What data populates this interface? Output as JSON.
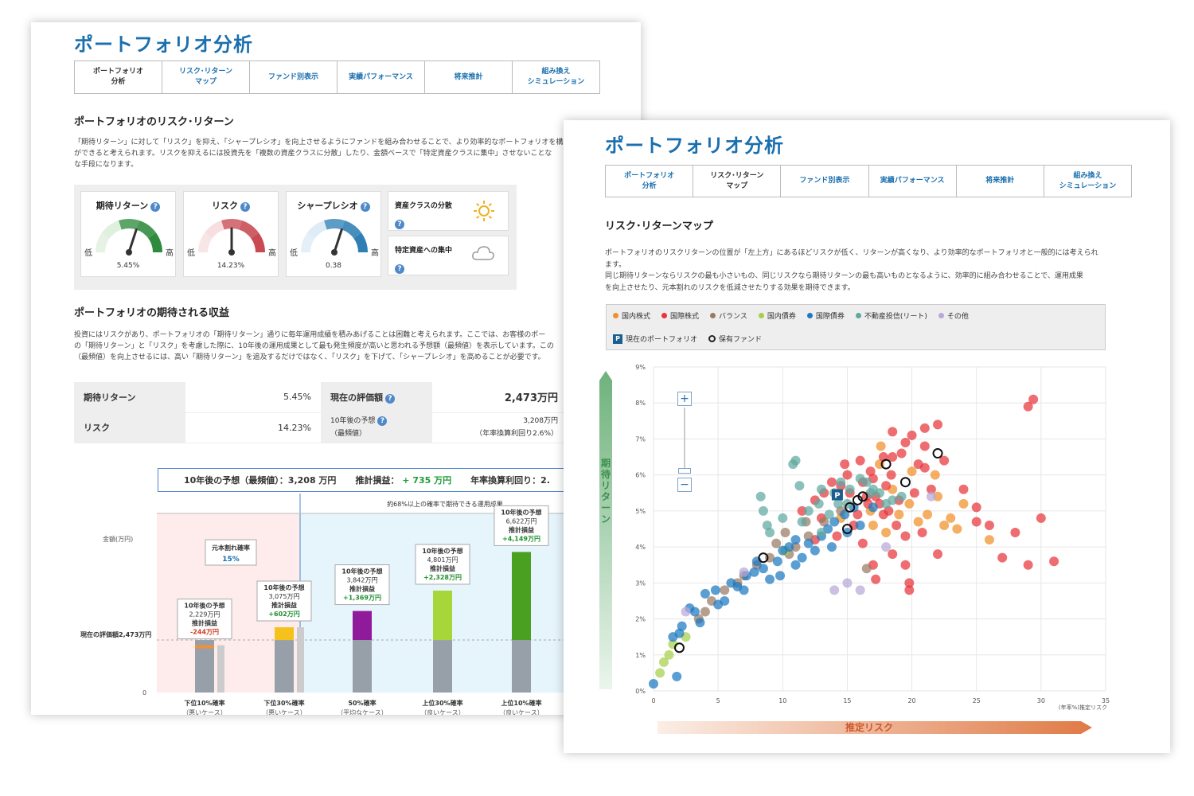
{
  "back": {
    "title": "ポートフォリオ分析",
    "tabs": [
      {
        "label": "ポートフォリオ\n分析",
        "active": true
      },
      {
        "label": "リスク･リターン\nマップ",
        "active": false
      },
      {
        "label": "ファンド別表示",
        "active": false
      },
      {
        "label": "実績パフォーマンス",
        "active": false
      },
      {
        "label": "将来推計",
        "active": false
      },
      {
        "label": "組み換え\nシミュレーション",
        "active": false
      }
    ],
    "section1_title": "ポートフォリオのリスク･リターン",
    "section1_text": "「期待リターン」に対して「リスク」を抑え、「シャープレシオ」を向上させるようにファンドを組み合わせることで、より効率的なポートフォリオを構築\nができると考えられます。リスクを抑えるには投資先を「複数の資産クラスに分散」したり、金額ベースで「特定資産クラスに集中」させないことな\nな手段になります。",
    "gauges": [
      {
        "title": "期待リターン",
        "value": "5.45%",
        "level": 0.6,
        "color": "#2e8b3e",
        "light": "#cfe8cf"
      },
      {
        "title": "リスク",
        "value": "14.23%",
        "level": 0.5,
        "color": "#c94a52",
        "light": "#f3cfd1"
      },
      {
        "title": "シャープレシオ",
        "value": "0.38",
        "level": 0.6,
        "color": "#2f7fb5",
        "light": "#cde2f1"
      }
    ],
    "gauge_low": "低",
    "gauge_high": "高",
    "diversification_label": "資産クラスの分散",
    "concentration_label": "特定資産への集中",
    "section2_title": "ポートフォリオの期待される収益",
    "section2_text": "投資にはリスクがあり、ポートフォリオの「期待リターン」通りに毎年運用成績を積みあげることは困難と考えられます。ここでは、お客様のポー\nの「期待リターン」と「リスク」を考慮した際に、10年後の運用成果として最も発生頻度が高いと思われる予想額（最頻値）を表示しています。この\n（最頻値）を向上させるには、高い「期待リターン」を追及するだけではなく、「リスク」を下げて、「シャープレシオ」を高めることが必要です。",
    "summary": {
      "expected_return_label": "期待リターン",
      "expected_return_value": "5.45%",
      "risk_label": "リスク",
      "risk_value": "14.23%",
      "current_value_label": "現在の評価額",
      "current_value": "2,473万円",
      "forecast_label": "10年後の予想",
      "forecast_sub": "（最頻値）",
      "forecast_value": "3,208万円",
      "forecast_note": "（年率換算利回り2.6%）"
    },
    "forecast_box": {
      "mode_label": "10年後の予想（最頻値）：3,208 万円",
      "profit_label": "推計損益：",
      "profit_value": "+ 735 万円",
      "annual_label": "年率換算利回り：2."
    },
    "sim_chart": {
      "ylabel": "金額(万円)",
      "zero": "0",
      "current_line_label": "現在の評価額2,473万円",
      "band_caption": "約68%以上の確率で期待できる運用成果",
      "loss_box_title": "元本割れ確率",
      "loss_box_value": "15%",
      "bars": [
        {
          "x_label": "下位10%確率",
          "x_sub": "（悪いケース）",
          "head": "10年後の予想",
          "amount": "2,229万円",
          "pl_label": "推計損益",
          "pl": "-244万円",
          "neg": true,
          "top_color": "#f0903a",
          "value": 2229
        },
        {
          "x_label": "下位30%確率",
          "x_sub": "（悪いケース）",
          "head": "10年後の予想",
          "amount": "3,075万円",
          "pl_label": "推計損益",
          "pl": "+602万円",
          "neg": false,
          "top_color": "#f5c21b",
          "value": 3075
        },
        {
          "x_label": "50%確率",
          "x_sub": "（平均なケース）",
          "head": "10年後の予想",
          "amount": "3,842万円",
          "pl_label": "推計損益",
          "pl": "+1,369万円",
          "neg": false,
          "top_color": "#8f1a9a",
          "value": 3842
        },
        {
          "x_label": "上位30%確率",
          "x_sub": "（良いケース）",
          "head": "10年後の予想",
          "amount": "4,801万円",
          "pl_label": "推計損益",
          "pl": "+2,328万円",
          "neg": false,
          "top_color": "#a6d63a",
          "value": 4801
        },
        {
          "x_label": "上位10%確率",
          "x_sub": "（良いケース）",
          "head": "10年後の予想",
          "amount": "6,622万円",
          "pl_label": "推計損益",
          "pl": "+4,149万円",
          "neg": false,
          "top_color": "#4aa020",
          "value": 6622
        }
      ]
    }
  },
  "front": {
    "title": "ポートフォリオ分析",
    "tabs": [
      {
        "label": "ポートフォリオ\n分析",
        "active": false
      },
      {
        "label": "リスク･リターン\nマップ",
        "active": true
      },
      {
        "label": "ファンド別表示",
        "active": false
      },
      {
        "label": "実績パフォーマンス",
        "active": false
      },
      {
        "label": "将来推計",
        "active": false
      },
      {
        "label": "組み換え\nシミュレーション",
        "active": false
      }
    ],
    "section_title": "リスク･リターンマップ",
    "section_text": "ポートフォリオのリスクリターンの位置が「左上方」にあるほどリスクが低く、リターンが高くなり、より効率的なポートフォリオと一般的には考えられ\nます。\n同じ期待リターンならリスクの最も小さいもの、同じリスクなら期待リターンの最も高いものとなるように、効率的に組み合わせることで、運用成果\nを向上させたり、元本割れのリスクを低減させたりする効果を期待できます。",
    "legend": [
      {
        "label": "国内株式",
        "color": "#f0902a"
      },
      {
        "label": "国際株式",
        "color": "#e8343a"
      },
      {
        "label": "バランス",
        "color": "#9a7a62"
      },
      {
        "label": "国内債券",
        "color": "#a6d04a"
      },
      {
        "label": "国際債券",
        "color": "#1c78c0"
      },
      {
        "label": "不動産投信(リート)",
        "color": "#5fa8a0"
      },
      {
        "label": "その他",
        "color": "#b8a8d8"
      }
    ],
    "legend_portfolio": "現在のポートフォリオ",
    "legend_portfolio_badge": "P",
    "legend_held": "保有ファンド",
    "zoom_in": "+",
    "zoom_out": "−",
    "yaxis_title": "期待リターン",
    "xaxis_title": "推定リスク"
  },
  "chart_data": {
    "type": "scatter",
    "title": "",
    "xlabel": "(年率%)推定リスク",
    "ylabel": "期待リターン",
    "xlim": [
      0,
      35
    ],
    "ylim": [
      0,
      9
    ],
    "x_ticks": [
      "0",
      "5",
      "10",
      "15",
      "20",
      "25",
      "30",
      "35"
    ],
    "y_ticks": [
      "0%",
      "1%",
      "2%",
      "3%",
      "4%",
      "5%",
      "6%",
      "7%",
      "8%",
      "9%"
    ],
    "portfolio": {
      "x": 14.23,
      "y": 5.45,
      "label": "P"
    },
    "held_funds": [
      [
        2,
        1.2
      ],
      [
        8.5,
        3.7
      ],
      [
        15,
        4.5
      ],
      [
        15.8,
        5.3
      ],
      [
        16.2,
        5.4
      ],
      [
        15.2,
        5.1
      ],
      [
        18,
        6.3
      ],
      [
        19.5,
        5.8
      ],
      [
        22,
        6.6
      ]
    ],
    "series": [
      {
        "name": "国内株式",
        "color": "#f0902a",
        "points": [
          [
            17.5,
            6.3
          ],
          [
            18.5,
            5.6
          ],
          [
            19.8,
            5.2
          ],
          [
            20.5,
            4.7
          ],
          [
            21.2,
            4.9
          ],
          [
            22.5,
            4.6
          ],
          [
            23.5,
            4.5
          ],
          [
            24,
            5.2
          ],
          [
            26,
            4.2
          ],
          [
            17,
            4.6
          ],
          [
            18,
            4.4
          ],
          [
            22,
            5.4
          ],
          [
            20,
            6.1
          ],
          [
            21.8,
            6.0
          ],
          [
            16.8,
            5.0
          ],
          [
            19,
            4.9
          ],
          [
            23,
            4.8
          ],
          [
            14.5,
            4.8
          ],
          [
            17.6,
            6.8
          ]
        ]
      },
      {
        "name": "国際株式",
        "color": "#e8343a",
        "points": [
          [
            29,
            7.9
          ],
          [
            29.4,
            8.1
          ],
          [
            22,
            7.4
          ],
          [
            20,
            7.1
          ],
          [
            21,
            7.3
          ],
          [
            19.5,
            6.9
          ],
          [
            22.5,
            6.4
          ],
          [
            21,
            6.2
          ],
          [
            24,
            5.6
          ],
          [
            25,
            5.1
          ],
          [
            26,
            4.6
          ],
          [
            28,
            4.4
          ],
          [
            30,
            4.8
          ],
          [
            31,
            3.6
          ],
          [
            29,
            3.5
          ],
          [
            27,
            3.7
          ],
          [
            25,
            4.7
          ],
          [
            22,
            3.8
          ],
          [
            19.5,
            3.5
          ],
          [
            18.5,
            3.8
          ],
          [
            19.8,
            3.0
          ],
          [
            19.8,
            2.8
          ],
          [
            17,
            3.5
          ],
          [
            17.2,
            3.1
          ],
          [
            16.5,
            5.4
          ],
          [
            17.5,
            5.2
          ],
          [
            18.2,
            5.0
          ],
          [
            18.8,
            4.6
          ],
          [
            16.2,
            5.8
          ],
          [
            15,
            6.0
          ],
          [
            14.5,
            5.7
          ],
          [
            13.8,
            5.8
          ],
          [
            16,
            6.4
          ],
          [
            17,
            5.9
          ],
          [
            18.5,
            6.5
          ],
          [
            19.2,
            6.6
          ],
          [
            20.5,
            6.3
          ],
          [
            21.5,
            5.6
          ],
          [
            15.5,
            4.6
          ],
          [
            16.2,
            4.1
          ],
          [
            14.2,
            4.3
          ],
          [
            13,
            4.8
          ],
          [
            12.5,
            5.3
          ],
          [
            11.5,
            5.0
          ],
          [
            21,
            6.8
          ],
          [
            18.5,
            7.2
          ],
          [
            17.2,
            5.4
          ],
          [
            15.8,
            4.9
          ],
          [
            17.8,
            4.9
          ],
          [
            19,
            5.3
          ],
          [
            20.2,
            5.5
          ],
          [
            18,
            5.7
          ],
          [
            16.8,
            6.1
          ],
          [
            14.8,
            6.3
          ],
          [
            13.2,
            5.5
          ],
          [
            12.5,
            4.2
          ],
          [
            19.5,
            4.3
          ],
          [
            20.8,
            4.4
          ],
          [
            15.2,
            5.5
          ],
          [
            16.6,
            5.2
          ],
          [
            18.4,
            6.0
          ],
          [
            17.8,
            6.5
          ]
        ]
      },
      {
        "name": "バランス",
        "color": "#9a7a62",
        "points": [
          [
            3.5,
            2.0
          ],
          [
            4.5,
            2.5
          ],
          [
            5.5,
            2.8
          ],
          [
            7,
            3.2
          ],
          [
            8,
            3.5
          ],
          [
            9.5,
            4.1
          ],
          [
            10.2,
            4.4
          ],
          [
            11,
            4.0
          ],
          [
            12,
            4.3
          ],
          [
            11.8,
            4.7
          ],
          [
            14.5,
            5.0
          ],
          [
            13.2,
            4.7
          ],
          [
            10.5,
            3.8
          ],
          [
            16.5,
            3.4
          ],
          [
            9,
            3.7
          ],
          [
            6.5,
            3.0
          ],
          [
            4,
            2.2
          ]
        ]
      },
      {
        "name": "国内債券",
        "color": "#a6d04a",
        "points": [
          [
            0.5,
            0.5
          ],
          [
            0.8,
            0.8
          ],
          [
            1.2,
            1.0
          ],
          [
            1.5,
            1.3
          ],
          [
            2.5,
            1.5
          ],
          [
            10.2,
            3.9
          ]
        ]
      },
      {
        "name": "国際債券",
        "color": "#1c78c0",
        "points": [
          [
            0,
            0.2
          ],
          [
            1.5,
            1.5
          ],
          [
            2.2,
            1.8
          ],
          [
            2.8,
            2.3
          ],
          [
            3.2,
            2.2
          ],
          [
            4,
            2.7
          ],
          [
            4.8,
            2.8
          ],
          [
            5.5,
            2.5
          ],
          [
            6,
            3.0
          ],
          [
            6.5,
            2.9
          ],
          [
            7.2,
            3.2
          ],
          [
            7.8,
            3.3
          ],
          [
            8.5,
            3.4
          ],
          [
            9,
            3.1
          ],
          [
            9.8,
            3.2
          ],
          [
            9.6,
            3.6
          ],
          [
            10,
            3.9
          ],
          [
            10.5,
            4.0
          ],
          [
            11,
            3.5
          ],
          [
            11.5,
            3.7
          ],
          [
            12,
            4.1
          ],
          [
            13,
            4.3
          ],
          [
            13.5,
            4.5
          ],
          [
            14,
            4.7
          ],
          [
            14.8,
            4.9
          ],
          [
            15.5,
            5.1
          ],
          [
            15,
            4.4
          ],
          [
            13.8,
            4.0
          ],
          [
            12.5,
            3.9
          ],
          [
            7,
            2.8
          ],
          [
            5,
            2.4
          ],
          [
            3.6,
            1.9
          ],
          [
            2,
            1.6
          ],
          [
            1.8,
            0.4
          ],
          [
            16,
            4.6
          ],
          [
            8,
            3.6
          ],
          [
            11,
            4.2
          ],
          [
            17,
            5.1
          ]
        ]
      },
      {
        "name": "不動産投信(リート)",
        "color": "#5fa8a0",
        "points": [
          [
            8.5,
            5.0
          ],
          [
            8.8,
            4.6
          ],
          [
            9,
            4.4
          ],
          [
            11.5,
            4.7
          ],
          [
            12,
            5.0
          ],
          [
            13,
            5.6
          ],
          [
            14,
            5.5
          ],
          [
            14.5,
            5.8
          ],
          [
            15.2,
            5.6
          ],
          [
            16,
            5.9
          ],
          [
            16.5,
            5.8
          ],
          [
            17,
            5.6
          ],
          [
            17.5,
            5.5
          ],
          [
            18,
            5.2
          ],
          [
            11.3,
            5.7
          ],
          [
            11,
            6.4
          ],
          [
            10.8,
            6.3
          ],
          [
            8.3,
            5.4
          ],
          [
            15,
            5.2
          ],
          [
            12.8,
            5.2
          ],
          [
            16.8,
            5.5
          ],
          [
            13.6,
            4.9
          ],
          [
            14.3,
            5.2
          ],
          [
            18.5,
            5.3
          ],
          [
            19.2,
            5.4
          ],
          [
            13,
            4.4
          ],
          [
            10,
            4.8
          ]
        ]
      },
      {
        "name": "その他",
        "color": "#b8a8d8",
        "points": [
          [
            2.5,
            2.2
          ],
          [
            7,
            3.3
          ],
          [
            14,
            2.8
          ],
          [
            15,
            3.0
          ],
          [
            16,
            2.8
          ],
          [
            21.5,
            5.4
          ],
          [
            18,
            4.0
          ]
        ]
      }
    ]
  }
}
